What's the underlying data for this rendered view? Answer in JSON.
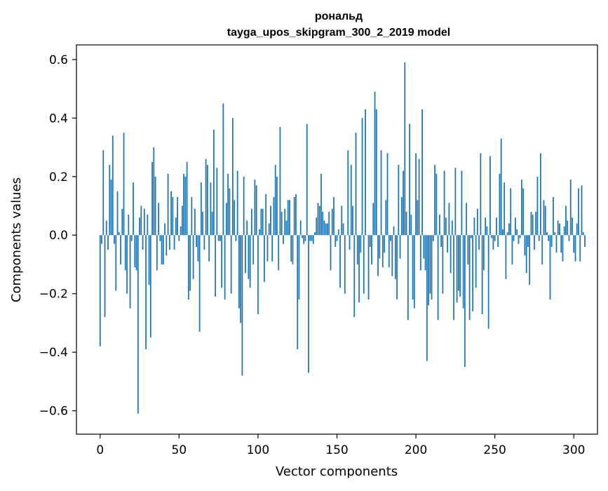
{
  "chart_data": {
    "type": "bar",
    "title": "ронaльд",
    "subtitle": "tayga_upos_skipgram_300_2_2019 model",
    "xlabel": "Vector components",
    "ylabel": "Components values",
    "xlim": [
      -15,
      315
    ],
    "ylim": [
      -0.68,
      0.65
    ],
    "xticks": [
      0,
      50,
      100,
      150,
      200,
      250,
      300
    ],
    "xtick_labels": [
      "0",
      "50",
      "100",
      "150",
      "200",
      "250",
      "300"
    ],
    "yticks": [
      -0.6,
      -0.4,
      -0.2,
      0.0,
      0.2,
      0.4,
      0.6
    ],
    "ytick_labels": [
      "−0.6",
      "−0.4",
      "−0.2",
      "0.0",
      "0.2",
      "0.4",
      "0.6"
    ],
    "bar_color": "#1f77b4",
    "grid": false,
    "values": [
      -0.38,
      -0.03,
      0.29,
      -0.28,
      0.05,
      -0.05,
      0.24,
      0.19,
      0.34,
      -0.03,
      -0.19,
      0.15,
      0.01,
      -0.1,
      0.09,
      0.35,
      -0.12,
      -0.2,
      0.07,
      -0.25,
      -0.02,
      0.18,
      -0.11,
      -0.12,
      -0.61,
      0.06,
      0.1,
      -0.05,
      0.09,
      -0.39,
      0.07,
      -0.17,
      -0.35,
      0.25,
      0.3,
      0.2,
      -0.12,
      0.11,
      -0.02,
      -0.1,
      -0.1,
      0.04,
      -0.07,
      0.21,
      -0.05,
      0.15,
      0.13,
      -0.05,
      0.06,
      0.13,
      -0.02,
      0.03,
      0.1,
      0.21,
      0.2,
      0.25,
      -0.22,
      -0.19,
      0.13,
      -0.15,
      0.09,
      -0.04,
      -0.09,
      -0.33,
      0.18,
      0.08,
      -0.05,
      0.26,
      0.24,
      -0.09,
      0.18,
      0.08,
      0.36,
      -0.21,
      0.23,
      -0.02,
      -0.02,
      -0.18,
      0.45,
      -0.22,
      0.11,
      0.21,
      0.16,
      -0.2,
      0.4,
      0.12,
      -0.02,
      0.22,
      -0.25,
      -0.3,
      -0.48,
      0.2,
      -0.13,
      0.05,
      -0.15,
      -0.18,
      0.09,
      -0.1,
      0.19,
      0.17,
      -0.27,
      0.02,
      0.09,
      0.09,
      -0.16,
      0.14,
      -0.09,
      0.04,
      0.1,
      -0.09,
      0.13,
      0.24,
      0.2,
      -0.12,
      0.37,
      0.08,
      -0.03,
      0.09,
      0.05,
      0.12,
      0.12,
      -0.09,
      -0.1,
      0.13,
      0.14,
      -0.39,
      -0.22,
      0.05,
      -0.01,
      -0.03,
      -0.02,
      0.38,
      -0.47,
      -0.02,
      -0.02,
      -0.03,
      0.01,
      0.06,
      0.11,
      0.1,
      0.21,
      0.08,
      0.05,
      0.04,
      0.04,
      0.08,
      -0.12,
      0.09,
      0.13,
      -0.04,
      -0.02,
      0.02,
      -0.18,
      0.1,
      0.04,
      -0.2,
      0.0,
      0.29,
      -0.05,
      0.24,
      0.1,
      -0.28,
      0.35,
      -0.1,
      -0.23,
      -0.06,
      0.4,
      -0.2,
      0.43,
      0.0,
      -0.22,
      -0.04,
      -0.1,
      0.11,
      0.49,
      0.43,
      -0.14,
      -0.08,
      0.29,
      -0.11,
      -0.06,
      0.12,
      0.28,
      -0.11,
      -0.02,
      -0.14,
      0.03,
      -0.15,
      -0.22,
      0.24,
      -0.08,
      0.13,
      0.22,
      0.59,
      0.08,
      -0.29,
      0.38,
      0.07,
      -0.22,
      -0.25,
      0.28,
      0.12,
      0.26,
      -0.12,
      0.43,
      -0.08,
      -0.12,
      -0.43,
      -0.24,
      -0.2,
      -0.22,
      -0.02,
      0.24,
      0.21,
      -0.29,
      0.07,
      -0.04,
      -0.2,
      0.22,
      0.06,
      -0.06,
      0.11,
      -0.13,
      0.05,
      -0.29,
      0.23,
      -0.23,
      -0.19,
      -0.21,
      0.22,
      -0.25,
      -0.45,
      0.11,
      -0.1,
      -0.29,
      -0.01,
      -0.26,
      0.06,
      -0.18,
      0.09,
      -0.05,
      0.28,
      -0.27,
      -0.12,
      0.06,
      0.03,
      -0.32,
      0.27,
      -0.01,
      -0.05,
      -0.02,
      0.06,
      -0.04,
      0.21,
      0.33,
      0.02,
      0.18,
      -0.15,
      0.01,
      0.04,
      0.16,
      -0.1,
      -0.02,
      0.06,
      0.02,
      -0.03,
      -0.01,
      0.19,
      0.16,
      -0.07,
      -0.13,
      -0.04,
      -0.17,
      0.08,
      0.07,
      -0.05,
      0.08,
      0.2,
      -0.02,
      0.28,
      -0.1,
      0.12,
      0.1,
      0.01,
      -0.02,
      -0.22,
      -0.04,
      0.13,
      0.01,
      -0.06,
      0.05,
      0.04,
      -0.06,
      -0.09,
      0.03,
      0.1,
      0.05,
      -0.02,
      0.19,
      0.06,
      -0.06,
      -0.09,
      0.04,
      0.16,
      -0.09,
      0.17,
      0.01,
      -0.04
    ],
    "values_note_do_not_render": ""
  }
}
